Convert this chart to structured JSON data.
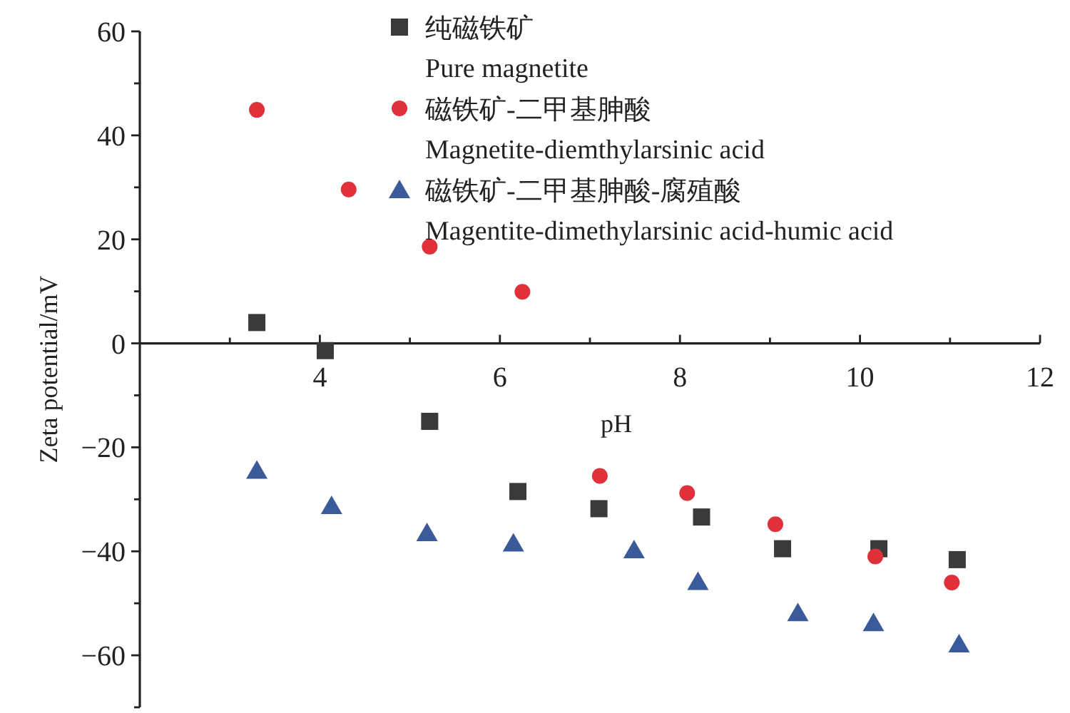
{
  "chart_data": {
    "type": "scatter",
    "xlabel": "pH",
    "ylabel": "Zeta potential/mV",
    "xlim": [
      2,
      12
    ],
    "ylim": [
      -70,
      60
    ],
    "xticks": [
      {
        "value": 3,
        "label": null
      },
      4,
      {
        "value": 5,
        "label": null
      },
      6,
      {
        "value": 7,
        "label": null
      },
      8,
      {
        "value": 9,
        "label": null
      },
      10,
      {
        "value": 11,
        "label": null
      },
      12
    ],
    "yticks": [
      {
        "value": -70,
        "label": null
      },
      -60,
      {
        "value": -50,
        "label": null
      },
      -40,
      {
        "value": -30,
        "label": null
      },
      -20,
      {
        "value": -10,
        "label": null
      },
      0,
      {
        "value": 10,
        "label": null
      },
      20,
      {
        "value": 30,
        "label": null
      },
      40,
      {
        "value": 50,
        "label": null
      },
      60
    ],
    "grid": false,
    "legend": "top",
    "series": [
      {
        "name": "纯磁铁矿\nPure magnetite",
        "color": "#3a3a3a",
        "marker": "square",
        "x": [
          3.3,
          4.06,
          5.22,
          6.2,
          7.1,
          8.24,
          9.14,
          10.21,
          11.08
        ],
        "values": [
          4,
          -1.4,
          -15,
          -28.5,
          -31.8,
          -33.4,
          -39.5,
          -39.5,
          -41.6
        ]
      },
      {
        "name": "磁铁矿-二甲基胂酸\nMagnetite-diemthylarsinic acid",
        "color": "#e0303a",
        "marker": "circle",
        "x": [
          3.3,
          4.32,
          5.22,
          6.25,
          7.11,
          8.08,
          9.06,
          10.17,
          11.02
        ],
        "values": [
          44.9,
          29.6,
          18.6,
          9.9,
          -25.5,
          -28.8,
          -34.8,
          -41,
          -46
        ]
      },
      {
        "name": "磁铁矿-二甲基胂酸-腐殖酸\nMagentite-dimethylarsinic acid-humic acid",
        "color": "#3a5a9a",
        "marker": "triangle",
        "x": [
          3.3,
          4.13,
          5.19,
          6.15,
          7.49,
          8.2,
          9.31,
          10.15,
          11.1
        ],
        "values": [
          -24.4,
          -31.2,
          -36.4,
          -38.4,
          -39.7,
          -45.8,
          -51.8,
          -53.7,
          -57.8
        ]
      }
    ]
  }
}
